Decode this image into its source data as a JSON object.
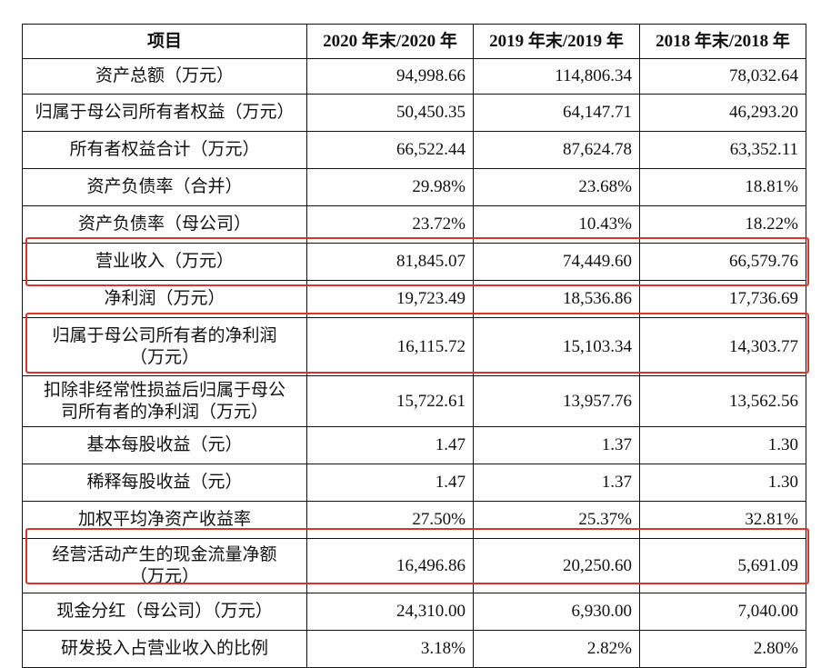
{
  "table": {
    "headers": [
      "项目",
      "2020 年末/2020 年",
      "2019 年末/2019 年",
      "2018 年末/2018 年"
    ],
    "rows": [
      {
        "label_lines": [
          "资产总额（万元）"
        ],
        "values": [
          "94,998.66",
          "114,806.34",
          "78,032.64"
        ]
      },
      {
        "label_lines": [
          "归属于母公司所有者权益（万元）"
        ],
        "values": [
          "50,450.35",
          "64,147.71",
          "46,293.20"
        ]
      },
      {
        "label_lines": [
          "所有者权益合计（万元）"
        ],
        "values": [
          "66,522.44",
          "87,624.78",
          "63,352.11"
        ]
      },
      {
        "label_lines": [
          "资产负债率（合并）"
        ],
        "values": [
          "29.98%",
          "23.68%",
          "18.81%"
        ]
      },
      {
        "label_lines": [
          "资产负债率（母公司）"
        ],
        "values": [
          "23.72%",
          "10.43%",
          "18.22%"
        ]
      },
      {
        "label_lines": [
          "营业收入（万元）"
        ],
        "values": [
          "81,845.07",
          "74,449.60",
          "66,579.76"
        ]
      },
      {
        "label_lines": [
          "净利润（万元）"
        ],
        "values": [
          "19,723.49",
          "18,536.86",
          "17,736.69"
        ]
      },
      {
        "label_lines": [
          "归属于母公司所有者的净利润",
          "（万元）"
        ],
        "values": [
          "16,115.72",
          "15,103.34",
          "14,303.77"
        ]
      },
      {
        "label_lines": [
          "扣除非经常性损益后归属于母公",
          "司所有者的净利润（万元）"
        ],
        "values": [
          "15,722.61",
          "13,957.76",
          "13,562.56"
        ]
      },
      {
        "label_lines": [
          "基本每股收益（元）"
        ],
        "values": [
          "1.47",
          "1.37",
          "1.30"
        ]
      },
      {
        "label_lines": [
          "稀释每股收益（元）"
        ],
        "values": [
          "1.47",
          "1.37",
          "1.30"
        ]
      },
      {
        "label_lines": [
          "加权平均净资产收益率"
        ],
        "values": [
          "27.50%",
          "25.37%",
          "32.81%"
        ]
      },
      {
        "label_lines": [
          "经营活动产生的现金流量净额",
          "（万元）"
        ],
        "values": [
          "16,496.86",
          "20,250.60",
          "5,691.09"
        ]
      },
      {
        "label_lines": [
          "现金分红（母公司）（万元）"
        ],
        "values": [
          "24,310.00",
          "6,930.00",
          "7,040.00"
        ]
      },
      {
        "label_lines": [
          "研发投入占营业收入的比例"
        ],
        "values": [
          "3.18%",
          "2.82%",
          "2.80%"
        ]
      }
    ]
  },
  "highlight_color": "#d9342b"
}
